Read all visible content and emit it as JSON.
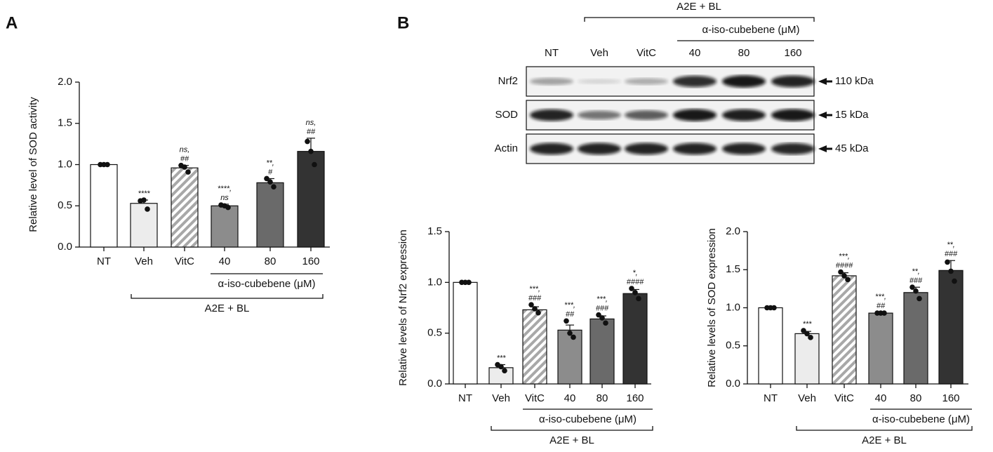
{
  "panels": [
    "A",
    "B"
  ],
  "chart_data": [
    {
      "type": "bar",
      "ylabel": "Relative level of SOD activity",
      "categories": [
        "NT",
        "Veh",
        "VitC",
        "40",
        "80",
        "160"
      ],
      "values": [
        1.0,
        0.53,
        0.96,
        0.5,
        0.78,
        1.16
      ],
      "errors": [
        0,
        0.04,
        0.03,
        0.02,
        0.05,
        0.16
      ],
      "points": [
        [
          1,
          1,
          1
        ],
        [
          0.56,
          0.57,
          0.46
        ],
        [
          0.99,
          0.97,
          0.91
        ],
        [
          0.51,
          0.5,
          0.48
        ],
        [
          0.83,
          0.79,
          0.73
        ],
        [
          1.28,
          1.16,
          1.0
        ]
      ],
      "annotations": [
        [],
        [
          "****"
        ],
        [
          "ns,",
          "##"
        ],
        [
          "****,",
          "ns"
        ],
        [
          "**,",
          "#"
        ],
        [
          "ns,",
          "##"
        ]
      ],
      "colors": [
        "#ffffff",
        "#ececec",
        "#a8a8a8",
        "#8c8c8c",
        "#6a6a6a",
        "#333333"
      ],
      "hatch": [
        false,
        false,
        true,
        false,
        false,
        false
      ],
      "sub_label": "α-iso-cubebene (μM)",
      "group_label": "A2E + BL",
      "ylim": [
        0,
        2.0
      ],
      "yticks": [
        {
          "value": 0,
          "label": "0.0"
        },
        {
          "value": 0.5,
          "label": "0.5"
        },
        {
          "value": 1,
          "label": "1.0"
        },
        {
          "value": 1.5,
          "label": "1.5"
        },
        {
          "value": 2,
          "label": "2.0"
        }
      ]
    },
    {
      "type": "bar",
      "ylabel": "Relative levels of Nrf2 expression",
      "categories": [
        "NT",
        "Veh",
        "VitC",
        "40",
        "80",
        "160"
      ],
      "values": [
        1.0,
        0.16,
        0.73,
        0.53,
        0.64,
        0.89
      ],
      "errors": [
        0,
        0.03,
        0.03,
        0.05,
        0.03,
        0.04
      ],
      "points": [
        [
          1,
          1,
          1
        ],
        [
          0.19,
          0.17,
          0.13
        ],
        [
          0.78,
          0.74,
          0.7
        ],
        [
          0.62,
          0.5,
          0.46
        ],
        [
          0.68,
          0.65,
          0.6
        ],
        [
          0.94,
          0.9,
          0.84
        ]
      ],
      "annotations": [
        [],
        [
          "***"
        ],
        [
          "***,",
          "###"
        ],
        [
          "***,",
          "##"
        ],
        [
          "***,",
          "###"
        ],
        [
          "*,",
          "####"
        ]
      ],
      "colors": [
        "#ffffff",
        "#ececec",
        "#a8a8a8",
        "#8c8c8c",
        "#6a6a6a",
        "#333333"
      ],
      "hatch": [
        false,
        false,
        true,
        false,
        false,
        false
      ],
      "sub_label": "α-iso-cubebene (μM)",
      "group_label": "A2E + BL",
      "ylim": [
        0,
        1.5
      ],
      "yticks": [
        {
          "value": 0,
          "label": "0.0"
        },
        {
          "value": 0.5,
          "label": "0.5"
        },
        {
          "value": 1,
          "label": "1.0"
        },
        {
          "value": 1.5,
          "label": "1.5"
        }
      ]
    },
    {
      "type": "bar",
      "ylabel": "Relative levels of SOD expression",
      "categories": [
        "NT",
        "Veh",
        "VitC",
        "40",
        "80",
        "160"
      ],
      "values": [
        1.0,
        0.66,
        1.42,
        0.93,
        1.2,
        1.49
      ],
      "errors": [
        0,
        0.03,
        0.04,
        0.01,
        0.07,
        0.13
      ],
      "points": [
        [
          1,
          1,
          1
        ],
        [
          0.7,
          0.66,
          0.61
        ],
        [
          1.47,
          1.42,
          1.37
        ],
        [
          0.93,
          0.93,
          0.93
        ],
        [
          1.27,
          1.22,
          1.12
        ],
        [
          1.6,
          1.48,
          1.35
        ]
      ],
      "annotations": [
        [],
        [
          "***"
        ],
        [
          "***,",
          "####"
        ],
        [
          "***,",
          "##"
        ],
        [
          "**,",
          "###"
        ],
        [
          "**,",
          "###"
        ]
      ],
      "colors": [
        "#ffffff",
        "#ececec",
        "#a8a8a8",
        "#8c8c8c",
        "#6a6a6a",
        "#333333"
      ],
      "hatch": [
        false,
        false,
        true,
        false,
        false,
        false
      ],
      "sub_label": "α-iso-cubebene (μM)",
      "group_label": "A2E + BL",
      "ylim": [
        0,
        2.0
      ],
      "yticks": [
        {
          "value": 0,
          "label": "0.0"
        },
        {
          "value": 0.5,
          "label": "0.5"
        },
        {
          "value": 1,
          "label": "1.0"
        },
        {
          "value": 1.5,
          "label": "1.5"
        },
        {
          "value": 2,
          "label": "2.0"
        }
      ]
    }
  ],
  "blot": {
    "group_label": "A2E + BL",
    "sub_label": "α-iso-cubebene (μM)",
    "lanes": [
      "NT",
      "Veh",
      "VitC",
      "40",
      "80",
      "160"
    ],
    "rows": [
      {
        "name": "Nrf2",
        "size": "110 kDa",
        "bands": [
          0.35,
          0.12,
          0.3,
          0.85,
          0.95,
          0.9
        ]
      },
      {
        "name": "SOD",
        "size": "15 kDa",
        "bands": [
          0.9,
          0.55,
          0.65,
          0.95,
          0.92,
          0.95
        ]
      },
      {
        "name": "Actin",
        "size": "45 kDa",
        "bands": [
          0.9,
          0.9,
          0.9,
          0.9,
          0.9,
          0.88
        ]
      }
    ]
  }
}
